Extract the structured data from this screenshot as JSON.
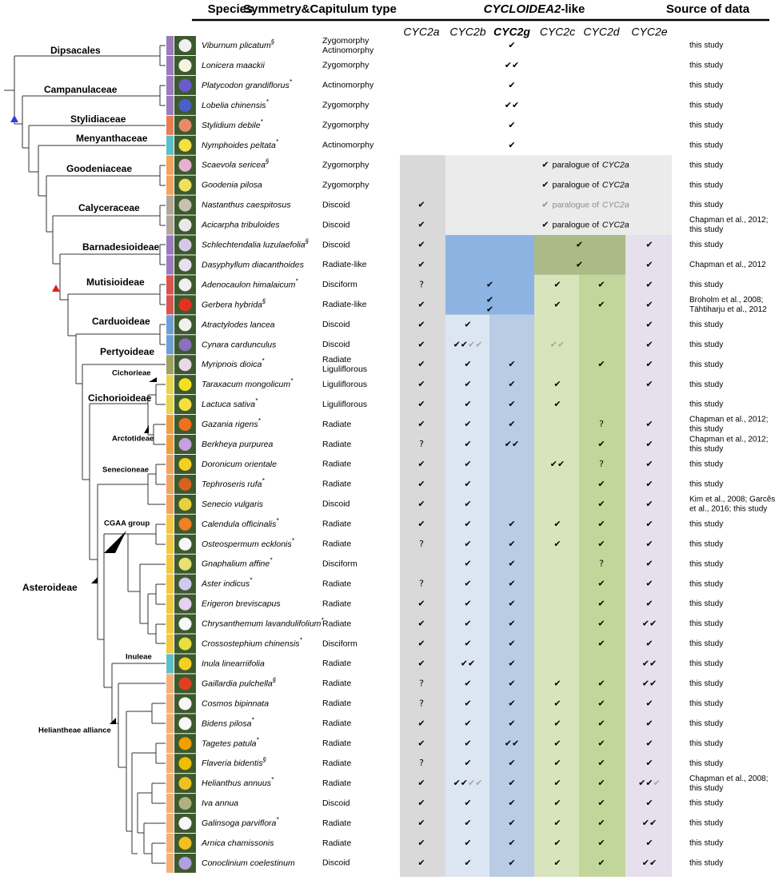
{
  "header": {
    "species": "Species",
    "symmetry": "Symmetry&Capitulum type",
    "group_italic": "CYCLOIDEA2",
    "group_suffix": "-like",
    "source": "Source of data"
  },
  "genes": [
    "CYC2a",
    "CYC2b",
    "CYC2g",
    "CYC2c",
    "CYC2d",
    "CYC2e"
  ],
  "clades": [
    "Dipsacales",
    "Campanulaceae",
    "Stylidiaceae",
    "Menyanthaceae",
    "Goodeniaceae",
    "Calyceraceae",
    "Barnadesioideae",
    "Mutisioideae",
    "Carduoideae",
    "Pertyoideae",
    "Cichorieae",
    "Cichorioideae",
    "Arctotideae",
    "Senecioneae",
    "CGAA group",
    "Asteroideae",
    "Inuleae",
    "Heliantheae alliance"
  ],
  "rows": [
    {
      "species": "Viburnum plicatum",
      "mark": "§",
      "symmetry": [
        "Zygomorphy",
        "Actinomorphy"
      ],
      "genes": [
        null,
        null,
        "✔",
        null,
        null,
        null
      ],
      "source": [
        "this study"
      ]
    },
    {
      "species": "Lonicera maackii",
      "symmetry": [
        "Zygomorphy"
      ],
      "genes": [
        null,
        null,
        "✔✔",
        null,
        null,
        null
      ],
      "source": [
        "this study"
      ]
    },
    {
      "species": "Platycodon grandiflorus",
      "mark": "*",
      "symmetry": [
        "Actinomorphy"
      ],
      "genes": [
        null,
        null,
        "✔",
        null,
        null,
        null
      ],
      "source": [
        "this study"
      ]
    },
    {
      "species": "Lobelia chinensis",
      "mark": "*",
      "symmetry": [
        "Zygomorphy"
      ],
      "genes": [
        null,
        null,
        "✔✔",
        null,
        null,
        null
      ],
      "source": [
        "this study"
      ]
    },
    {
      "species": "Stylidium debile",
      "mark": "*",
      "symmetry": [
        "Zygomorphy"
      ],
      "genes": [
        null,
        null,
        "✔",
        null,
        null,
        null
      ],
      "source": [
        "this study"
      ]
    },
    {
      "species": "Nymphoides peltata",
      "mark": "*",
      "symmetry": [
        "Actinomorphy"
      ],
      "genes": [
        null,
        null,
        "✔",
        null,
        null,
        null
      ],
      "source": [
        "this study"
      ]
    },
    {
      "species": "Scaevola sericea",
      "mark": "§",
      "symmetry": [
        "Zygomorphy"
      ],
      "genes": [
        null,
        null,
        null,
        null,
        null,
        null
      ],
      "note": {
        "check": "✔",
        "text": "paralogue of",
        "gene": "CYC2a"
      },
      "source": [
        "this study"
      ]
    },
    {
      "species": "Goodenia pilosa",
      "symmetry": [
        "Zygomorphy"
      ],
      "genes": [
        null,
        null,
        null,
        null,
        null,
        null
      ],
      "note": {
        "check": "✔",
        "text": "paralogue of",
        "gene": "CYC2a"
      },
      "source": [
        "this study"
      ]
    },
    {
      "species": "Nastanthus caespitosus",
      "symmetry": [
        "Discoid"
      ],
      "genes": [
        "✔",
        null,
        null,
        null,
        null,
        null
      ],
      "note": {
        "check": "✔",
        "text": "paralogue of",
        "gene": "CYC2a",
        "faded": true
      },
      "source": [
        "this study"
      ]
    },
    {
      "species": "Acicarpha tribuloides",
      "symmetry": [
        "Discoid"
      ],
      "genes": [
        "✔",
        null,
        null,
        null,
        null,
        null
      ],
      "note": {
        "check": "✔",
        "text": "paralogue of",
        "gene": "CYC2a"
      },
      "source": [
        "Chapman et al., 2012;",
        "this study"
      ]
    },
    {
      "species": "Schlechtendalia luzulaefolia",
      "mark": "§",
      "symmetry": [
        "Discoid"
      ],
      "genes": [
        "✔",
        null,
        null,
        "✔",
        null,
        "✔"
      ],
      "merged_columns": [
        3,
        4
      ],
      "source": [
        "this study"
      ]
    },
    {
      "species": "Dasyphyllum diacanthoides",
      "symmetry": [
        "Radiate-like"
      ],
      "genes": [
        "✔",
        null,
        null,
        "✔",
        null,
        "✔"
      ],
      "merged_columns": [
        3,
        4
      ],
      "source": [
        "Chapman et al., 2012"
      ]
    },
    {
      "species": "Adenocaulon himalaicum",
      "mark": "*",
      "symmetry": [
        "Disciform"
      ],
      "genes": [
        "?",
        "✔",
        null,
        "✔",
        "✔",
        "✔"
      ],
      "merged_columns": [
        1,
        2
      ],
      "source": [
        "this study"
      ]
    },
    {
      "species": "Gerbera hybrida",
      "mark": "§",
      "symmetry": [
        "Radiate-like"
      ],
      "genes": [
        "✔",
        "✔",
        "✔",
        "✔",
        "✔",
        "✔"
      ],
      "merged_columns": [
        1,
        2
      ],
      "source": [
        "Broholm et al., 2008;",
        "Tähtiharju et al., 2012"
      ]
    },
    {
      "species": "Atractylodes lancea",
      "symmetry": [
        "Discoid"
      ],
      "genes": [
        "✔",
        "✔",
        null,
        null,
        null,
        "✔"
      ],
      "source": [
        "this study"
      ]
    },
    {
      "species": "Cynara cardunculus",
      "symmetry": [
        "Discoid"
      ],
      "genes": [
        "✔",
        {
          "text": "✔✔",
          "faded": "✔✔"
        },
        null,
        {
          "faded": "✔✔"
        },
        null,
        "✔"
      ],
      "source": [
        "this study"
      ]
    },
    {
      "species": "Myripnois dioica",
      "mark": "*",
      "symmetry": [
        "Radiate",
        "Liguliflorous"
      ],
      "genes": [
        "✔",
        "✔",
        "✔",
        null,
        "✔",
        "✔"
      ],
      "source": [
        "this study"
      ]
    },
    {
      "species": "Taraxacum mongolicum",
      "mark": "*",
      "symmetry": [
        "Liguliflorous"
      ],
      "genes": [
        "✔",
        "✔",
        "✔",
        "✔",
        null,
        "✔"
      ],
      "source": [
        "this study"
      ]
    },
    {
      "species": "Lactuca sativa",
      "mark": "*",
      "symmetry": [
        "Liguliflorous"
      ],
      "genes": [
        "✔",
        "✔",
        "✔",
        "✔",
        null,
        null
      ],
      "source": [
        "this study"
      ]
    },
    {
      "species": "Gazania rigens",
      "mark": "*",
      "symmetry": [
        "Radiate"
      ],
      "genes": [
        "✔",
        "✔",
        "✔",
        null,
        "?",
        "✔"
      ],
      "source": [
        "Chapman et al., 2012;",
        "this study"
      ]
    },
    {
      "species": "Berkheya purpurea",
      "symmetry": [
        "Radiate"
      ],
      "genes": [
        "?",
        "✔",
        "✔✔",
        null,
        "✔",
        "✔"
      ],
      "source": [
        "Chapman et al., 2012;",
        "this study"
      ]
    },
    {
      "species": "Doronicum orientale",
      "symmetry": [
        "Radiate"
      ],
      "genes": [
        "✔",
        "✔",
        null,
        "✔✔",
        "?",
        "✔"
      ],
      "source": [
        "this study"
      ]
    },
    {
      "species": "Tephroseris rufa",
      "mark": "*",
      "symmetry": [
        "Radiate"
      ],
      "genes": [
        "✔",
        "✔",
        null,
        null,
        "✔",
        "✔"
      ],
      "source": [
        "this study"
      ]
    },
    {
      "species": "Senecio vulgaris",
      "symmetry": [
        "Discoid"
      ],
      "genes": [
        "✔",
        "✔",
        null,
        null,
        "✔",
        "✔"
      ],
      "source": [
        "Kim et al., 2008; Garcês",
        "et al., 2016; this study"
      ]
    },
    {
      "species": "Calendula officinalis",
      "mark": "*",
      "symmetry": [
        "Radiate"
      ],
      "genes": [
        "✔",
        "✔",
        "✔",
        "✔",
        "✔",
        "✔"
      ],
      "source": [
        "this study"
      ]
    },
    {
      "species": "Osteospermum ecklonis",
      "mark": "*",
      "symmetry": [
        "Radiate"
      ],
      "genes": [
        "?",
        "✔",
        "✔",
        "✔",
        "✔",
        "✔"
      ],
      "source": [
        "this study"
      ]
    },
    {
      "species": "Gnaphalium affine",
      "mark": "*",
      "symmetry": [
        "Disciform"
      ],
      "genes": [
        null,
        "✔",
        "✔",
        null,
        "?",
        "✔"
      ],
      "source": [
        "this study"
      ]
    },
    {
      "species": "Aster indicus",
      "mark": "*",
      "symmetry": [
        "Radiate"
      ],
      "genes": [
        "?",
        "✔",
        "✔",
        null,
        "✔",
        "✔"
      ],
      "source": [
        "this study"
      ]
    },
    {
      "species": "Erigeron breviscapus",
      "symmetry": [
        "Radiate"
      ],
      "genes": [
        "✔",
        "✔",
        "✔",
        null,
        "✔",
        "✔"
      ],
      "source": [
        "this study"
      ]
    },
    {
      "species": "Chrysanthemum lavandulifolium",
      "mark": "*",
      "symmetry": [
        "Radiate"
      ],
      "genes": [
        "✔",
        "✔",
        "✔",
        null,
        "✔",
        "✔✔"
      ],
      "source": [
        "this study"
      ]
    },
    {
      "species": "Crossostephium chinensis",
      "mark": "*",
      "symmetry": [
        "Disciform"
      ],
      "genes": [
        "✔",
        "✔",
        "✔",
        null,
        "✔",
        "✔"
      ],
      "source": [
        "this study"
      ]
    },
    {
      "species": "Inula linearriifolia",
      "symmetry": [
        "Radiate"
      ],
      "genes": [
        "✔",
        "✔✔",
        "✔",
        null,
        null,
        "✔✔"
      ],
      "source": [
        "this study"
      ]
    },
    {
      "species": "Gaillardia pulchella",
      "mark": "§",
      "symmetry": [
        "Radiate"
      ],
      "genes": [
        "?",
        "✔",
        "✔",
        "✔",
        "✔",
        "✔✔"
      ],
      "source": [
        "this study"
      ]
    },
    {
      "species": "Cosmos bipinnata",
      "symmetry": [
        "Radiate"
      ],
      "genes": [
        "?",
        "✔",
        "✔",
        "✔",
        "✔",
        "✔"
      ],
      "source": [
        "this study"
      ]
    },
    {
      "species": "Bidens pilosa",
      "mark": "*",
      "symmetry": [
        "Radiate"
      ],
      "genes": [
        "✔",
        "✔",
        "✔",
        "✔",
        "✔",
        "✔"
      ],
      "source": [
        "this study"
      ]
    },
    {
      "species": "Tagetes patula",
      "mark": "*",
      "symmetry": [
        "Radiate"
      ],
      "genes": [
        "✔",
        "✔",
        "✔✔",
        "✔",
        "✔",
        "✔"
      ],
      "source": [
        "this study"
      ]
    },
    {
      "species": "Flaveria bidentis",
      "mark": "§",
      "symmetry": [
        "Radiate"
      ],
      "genes": [
        "?",
        "✔",
        "✔",
        "✔",
        "✔",
        "✔"
      ],
      "source": [
        "this study"
      ]
    },
    {
      "species": "Helianthus annuus",
      "mark": "*",
      "symmetry": [
        "Radiate"
      ],
      "genes": [
        "✔",
        {
          "text": "✔✔",
          "faded": "✔✔"
        },
        "✔",
        "✔",
        "✔",
        {
          "text": "✔✔",
          "faded": "✔"
        }
      ],
      "source": [
        "Chapman et al., 2008;",
        "this study"
      ]
    },
    {
      "species": "Iva annua",
      "symmetry": [
        "Discoid"
      ],
      "genes": [
        "✔",
        "✔",
        "✔",
        "✔",
        "✔",
        "✔"
      ],
      "source": [
        "this study"
      ]
    },
    {
      "species": "Galinsoga parviflora",
      "mark": "*",
      "symmetry": [
        "Radiate"
      ],
      "genes": [
        "✔",
        "✔",
        "✔",
        "✔",
        "✔",
        "✔✔"
      ],
      "source": [
        "this study"
      ]
    },
    {
      "species": "Arnica chamissonis",
      "symmetry": [
        "Radiate"
      ],
      "genes": [
        "✔",
        "✔",
        "✔",
        "✔",
        "✔",
        "✔"
      ],
      "source": [
        "this study"
      ]
    },
    {
      "species": "Conoclinium coelestinum",
      "symmetry": [
        "Discoid"
      ],
      "genes": [
        "✔",
        "✔",
        "✔",
        "✔",
        "✔",
        "✔✔"
      ],
      "source": [
        "this study"
      ]
    }
  ]
}
